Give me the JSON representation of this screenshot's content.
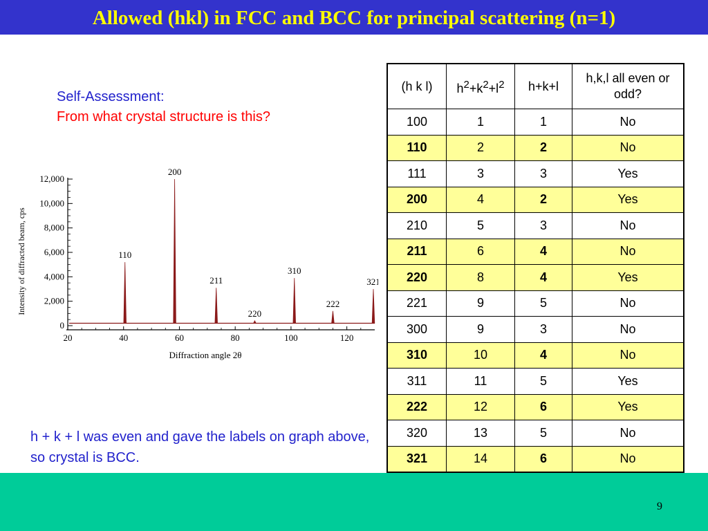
{
  "title": "Allowed (hkl) in FCC and BCC for principal scattering (n=1)",
  "self_assessment": {
    "heading": "Self-Assessment:",
    "question": "From what crystal structure is this?"
  },
  "conclusion": "h + k + l was even and gave the labels on graph above, so crystal is BCC.",
  "page_number": "9",
  "colors": {
    "title_bg": "#3333cc",
    "title_text": "#ffff00",
    "footer_bg": "#00cc99",
    "highlight_row": "#ffff99",
    "peak": "#8b1a1a"
  },
  "table": {
    "headers": {
      "hkl": "(h k l)",
      "sum_sq": {
        "h": "h",
        "k": "+k",
        "l": "+l",
        "exp": "2"
      },
      "sum": "h+k+l",
      "parity": "h,k,l all even or odd?"
    },
    "rows": [
      {
        "hkl": "100",
        "sq": "1",
        "sum": "1",
        "parity": "No",
        "highlight": false
      },
      {
        "hkl": "110",
        "sq": "2",
        "sum": "2",
        "parity": "No",
        "highlight": true
      },
      {
        "hkl": "111",
        "sq": "3",
        "sum": "3",
        "parity": "Yes",
        "highlight": false
      },
      {
        "hkl": "200",
        "sq": "4",
        "sum": "2",
        "parity": "Yes",
        "highlight": true
      },
      {
        "hkl": "210",
        "sq": "5",
        "sum": "3",
        "parity": "No",
        "highlight": false
      },
      {
        "hkl": "211",
        "sq": "6",
        "sum": "4",
        "parity": "No",
        "highlight": true
      },
      {
        "hkl": "220",
        "sq": "8",
        "sum": "4",
        "parity": "Yes",
        "highlight": true
      },
      {
        "hkl": "221",
        "sq": "9",
        "sum": "5",
        "parity": "No",
        "highlight": false
      },
      {
        "hkl": "300",
        "sq": "9",
        "sum": "3",
        "parity": "No",
        "highlight": false
      },
      {
        "hkl": "310",
        "sq": "10",
        "sum": "4",
        "parity": "No",
        "highlight": true
      },
      {
        "hkl": "311",
        "sq": "11",
        "sum": "5",
        "parity": "Yes",
        "highlight": false
      },
      {
        "hkl": "222",
        "sq": "12",
        "sum": "6",
        "parity": "Yes",
        "highlight": true
      },
      {
        "hkl": "320",
        "sq": "13",
        "sum": "5",
        "parity": "No",
        "highlight": false
      },
      {
        "hkl": "321",
        "sq": "14",
        "sum": "6",
        "parity": "No",
        "highlight": true
      }
    ]
  },
  "chart_data": {
    "type": "line",
    "xlabel": "Diffraction angle 2θ",
    "ylabel": "Intensity of diffracted beam, cps",
    "xlim": [
      20,
      130
    ],
    "ylim": [
      0,
      12000
    ],
    "xticks": [
      "20",
      "40",
      "60",
      "80",
      "100",
      "120"
    ],
    "yticks": [
      "0",
      "2,000",
      "4,000",
      "6,000",
      "8,000",
      "10,000",
      "12,000"
    ],
    "xtick_values": [
      20,
      40,
      60,
      80,
      100,
      120
    ],
    "ytick_values": [
      0,
      2000,
      4000,
      6000,
      8000,
      10000,
      12000
    ],
    "baseline": 200,
    "peaks": [
      {
        "label": "110",
        "x": 40.5,
        "y": 5200
      },
      {
        "label": "200",
        "x": 58.3,
        "y": 12000
      },
      {
        "label": "211",
        "x": 73.2,
        "y": 3100
      },
      {
        "label": "220",
        "x": 87.0,
        "y": 400
      },
      {
        "label": "310",
        "x": 101.2,
        "y": 3900
      },
      {
        "label": "222",
        "x": 115.0,
        "y": 1200
      },
      {
        "label": "321",
        "x": 131.0,
        "y": 3000
      }
    ]
  }
}
